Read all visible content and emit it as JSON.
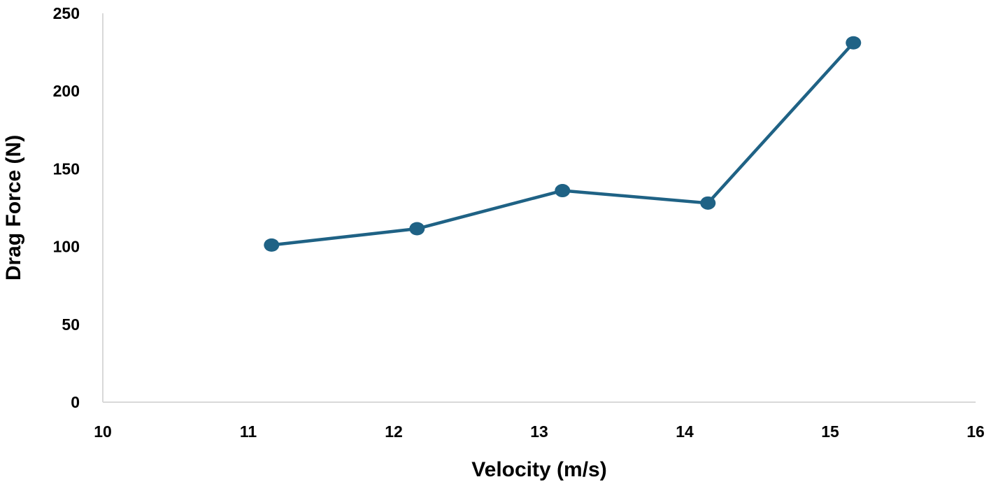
{
  "chart_data": {
    "type": "line",
    "title": "",
    "xlabel": "Velocity  (m/s)",
    "ylabel": "Drag Force (N)",
    "xlim": [
      10,
      16
    ],
    "ylim": [
      0,
      250
    ],
    "xticks": [
      10,
      11,
      12,
      13,
      14,
      15,
      16
    ],
    "yticks": [
      0,
      50,
      100,
      150,
      200,
      250
    ],
    "grid": false,
    "legend": "none",
    "series": [
      {
        "color": "#1f6285",
        "x": [
          11.16,
          12.16,
          13.16,
          14.16,
          15.16
        ],
        "y": [
          101,
          111.5,
          136,
          128,
          231
        ]
      }
    ]
  }
}
